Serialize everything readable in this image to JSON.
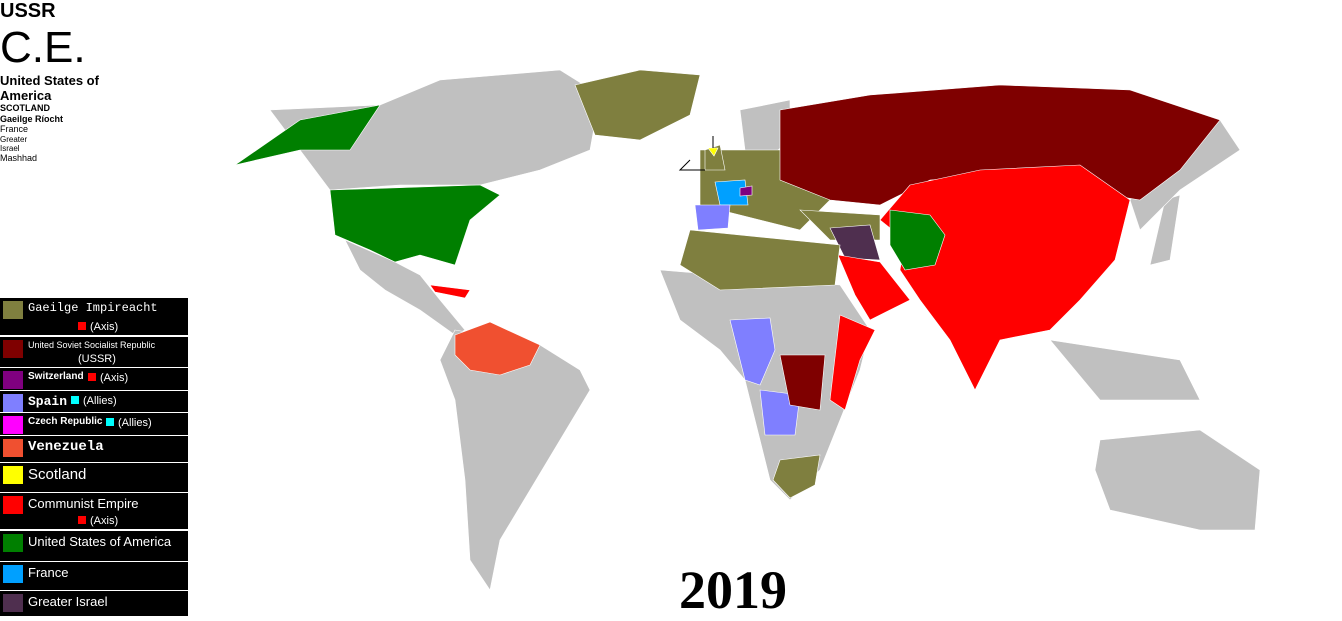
{
  "year": "2019",
  "map_labels": [
    "USSR",
    "C.E.",
    "United States of America",
    "SCOTLAND",
    "Gaeilge Ríocht",
    "France",
    "Greater Israel",
    "Mashhad"
  ],
  "legend": [
    {
      "name": "Gaeilge Impireacht",
      "note": "(Axis)",
      "note_color": "#ff0000",
      "color": "#7f7f3f"
    },
    {
      "name": "United Soviet Socialist Republic",
      "note": "(USSR)",
      "color": "#7f0000"
    },
    {
      "name": "Switzerland",
      "note": "(Axis)",
      "note_color": "#ff0000",
      "color": "#7f007f"
    },
    {
      "name": "Spain",
      "note": "(Allies)",
      "note_color": "#00ffff",
      "color": "#7f7fff"
    },
    {
      "name": "Czech Republic",
      "note": "(Allies)",
      "note_color": "#00ffff",
      "color": "#ff00ff"
    },
    {
      "name": "Venezuela",
      "color": "#f05030"
    },
    {
      "name": "Scotland",
      "color": "#ffff00"
    },
    {
      "name": "Communist Empire",
      "note": "(Axis)",
      "note_color": "#ff0000",
      "color": "#ff0000"
    },
    {
      "name": "United States of America",
      "color": "#007f00"
    },
    {
      "name": "France",
      "color": "#00a0ff"
    },
    {
      "name": "Greater Israel",
      "color": "#4f2f4f"
    }
  ]
}
